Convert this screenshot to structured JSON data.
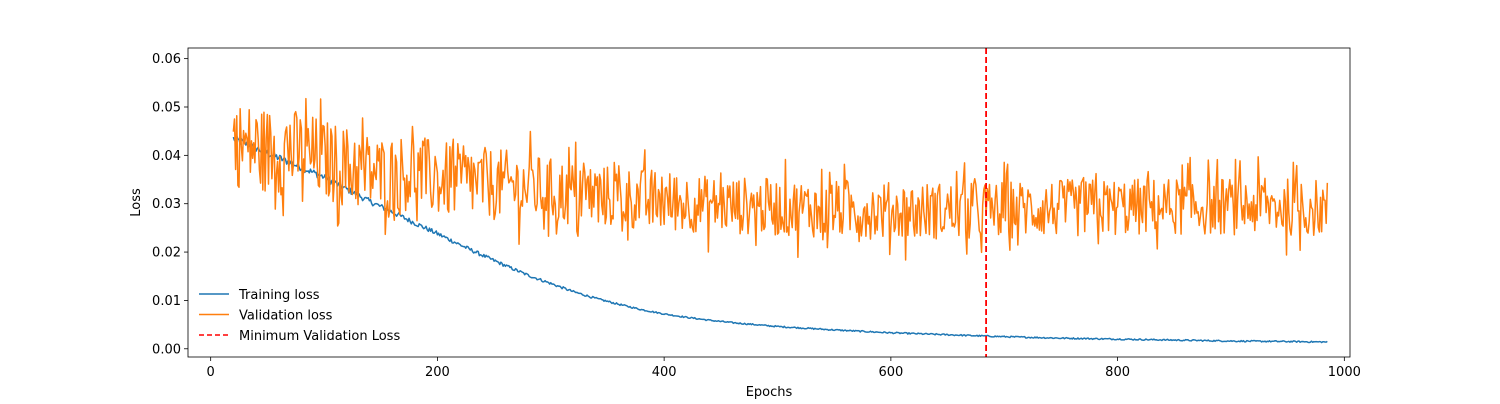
{
  "chart_data": {
    "type": "line",
    "title": "",
    "xlabel": "Epochs",
    "ylabel": "Loss",
    "xlim": [
      -20,
      1005
    ],
    "ylim": [
      -0.0017,
      0.0622
    ],
    "xticks": [
      0,
      200,
      400,
      600,
      800,
      1000
    ],
    "xtick_labels": [
      "0",
      "200",
      "400",
      "600",
      "800",
      "1000"
    ],
    "yticks": [
      0.0,
      0.01,
      0.02,
      0.03,
      0.04,
      0.05,
      0.06
    ],
    "ytick_labels": [
      "0.00",
      "0.01",
      "0.02",
      "0.03",
      "0.04",
      "0.05",
      "0.06"
    ],
    "grid": false,
    "legend_position": "lower-left",
    "epoch_range": [
      20,
      985
    ],
    "series": [
      {
        "name": "Training loss",
        "color": "#1f77b4",
        "x": [
          20,
          40,
          60,
          80,
          100,
          120,
          140,
          160,
          180,
          200,
          220,
          240,
          260,
          280,
          300,
          320,
          340,
          360,
          380,
          400,
          420,
          440,
          460,
          480,
          500,
          550,
          600,
          650,
          700,
          750,
          800,
          850,
          900,
          950,
          985
        ],
        "values": [
          0.0435,
          0.0415,
          0.0395,
          0.0375,
          0.0355,
          0.033,
          0.0305,
          0.0283,
          0.026,
          0.0238,
          0.0215,
          0.0193,
          0.0172,
          0.0152,
          0.0135,
          0.0118,
          0.0104,
          0.0092,
          0.0081,
          0.0072,
          0.0065,
          0.0059,
          0.0054,
          0.005,
          0.0046,
          0.0039,
          0.0033,
          0.0029,
          0.0025,
          0.0022,
          0.002,
          0.0018,
          0.0016,
          0.0015,
          0.0014
        ]
      },
      {
        "name": "Validation loss",
        "color": "#ff7f0e",
        "x": [
          20,
          50,
          80,
          100,
          130,
          150,
          180,
          200,
          230,
          250,
          280,
          300,
          330,
          350,
          380,
          400,
          430,
          450,
          480,
          500,
          530,
          550,
          580,
          600,
          630,
          650,
          680,
          700,
          730,
          750,
          780,
          800,
          830,
          850,
          880,
          900,
          930,
          950,
          985
        ],
        "values": [
          0.0425,
          0.041,
          0.0405,
          0.039,
          0.037,
          0.036,
          0.0365,
          0.035,
          0.0345,
          0.034,
          0.0335,
          0.0325,
          0.032,
          0.0315,
          0.031,
          0.0305,
          0.03,
          0.0297,
          0.0295,
          0.0292,
          0.029,
          0.0288,
          0.0287,
          0.0285,
          0.0285,
          0.0286,
          0.0284,
          0.0288,
          0.029,
          0.029,
          0.0292,
          0.0293,
          0.0293,
          0.0295,
          0.0295,
          0.0295,
          0.0295,
          0.0293,
          0.029
        ],
        "noise_amplitude": [
          0.009,
          0.009,
          0.009,
          0.0085,
          0.0085,
          0.008,
          0.008,
          0.008,
          0.0075,
          0.0075,
          0.007,
          0.007,
          0.007,
          0.0065,
          0.0065,
          0.0065,
          0.006,
          0.006,
          0.006,
          0.006,
          0.006,
          0.006,
          0.006,
          0.006,
          0.006,
          0.006,
          0.006,
          0.006,
          0.006,
          0.006,
          0.006,
          0.006,
          0.006,
          0.006,
          0.006,
          0.006,
          0.006,
          0.006,
          0.006
        ]
      }
    ],
    "min_validation_epoch": 684,
    "min_validation_marker": {
      "name": "Minimum Validation Loss",
      "color": "#ff0000",
      "style": "dashed"
    }
  }
}
